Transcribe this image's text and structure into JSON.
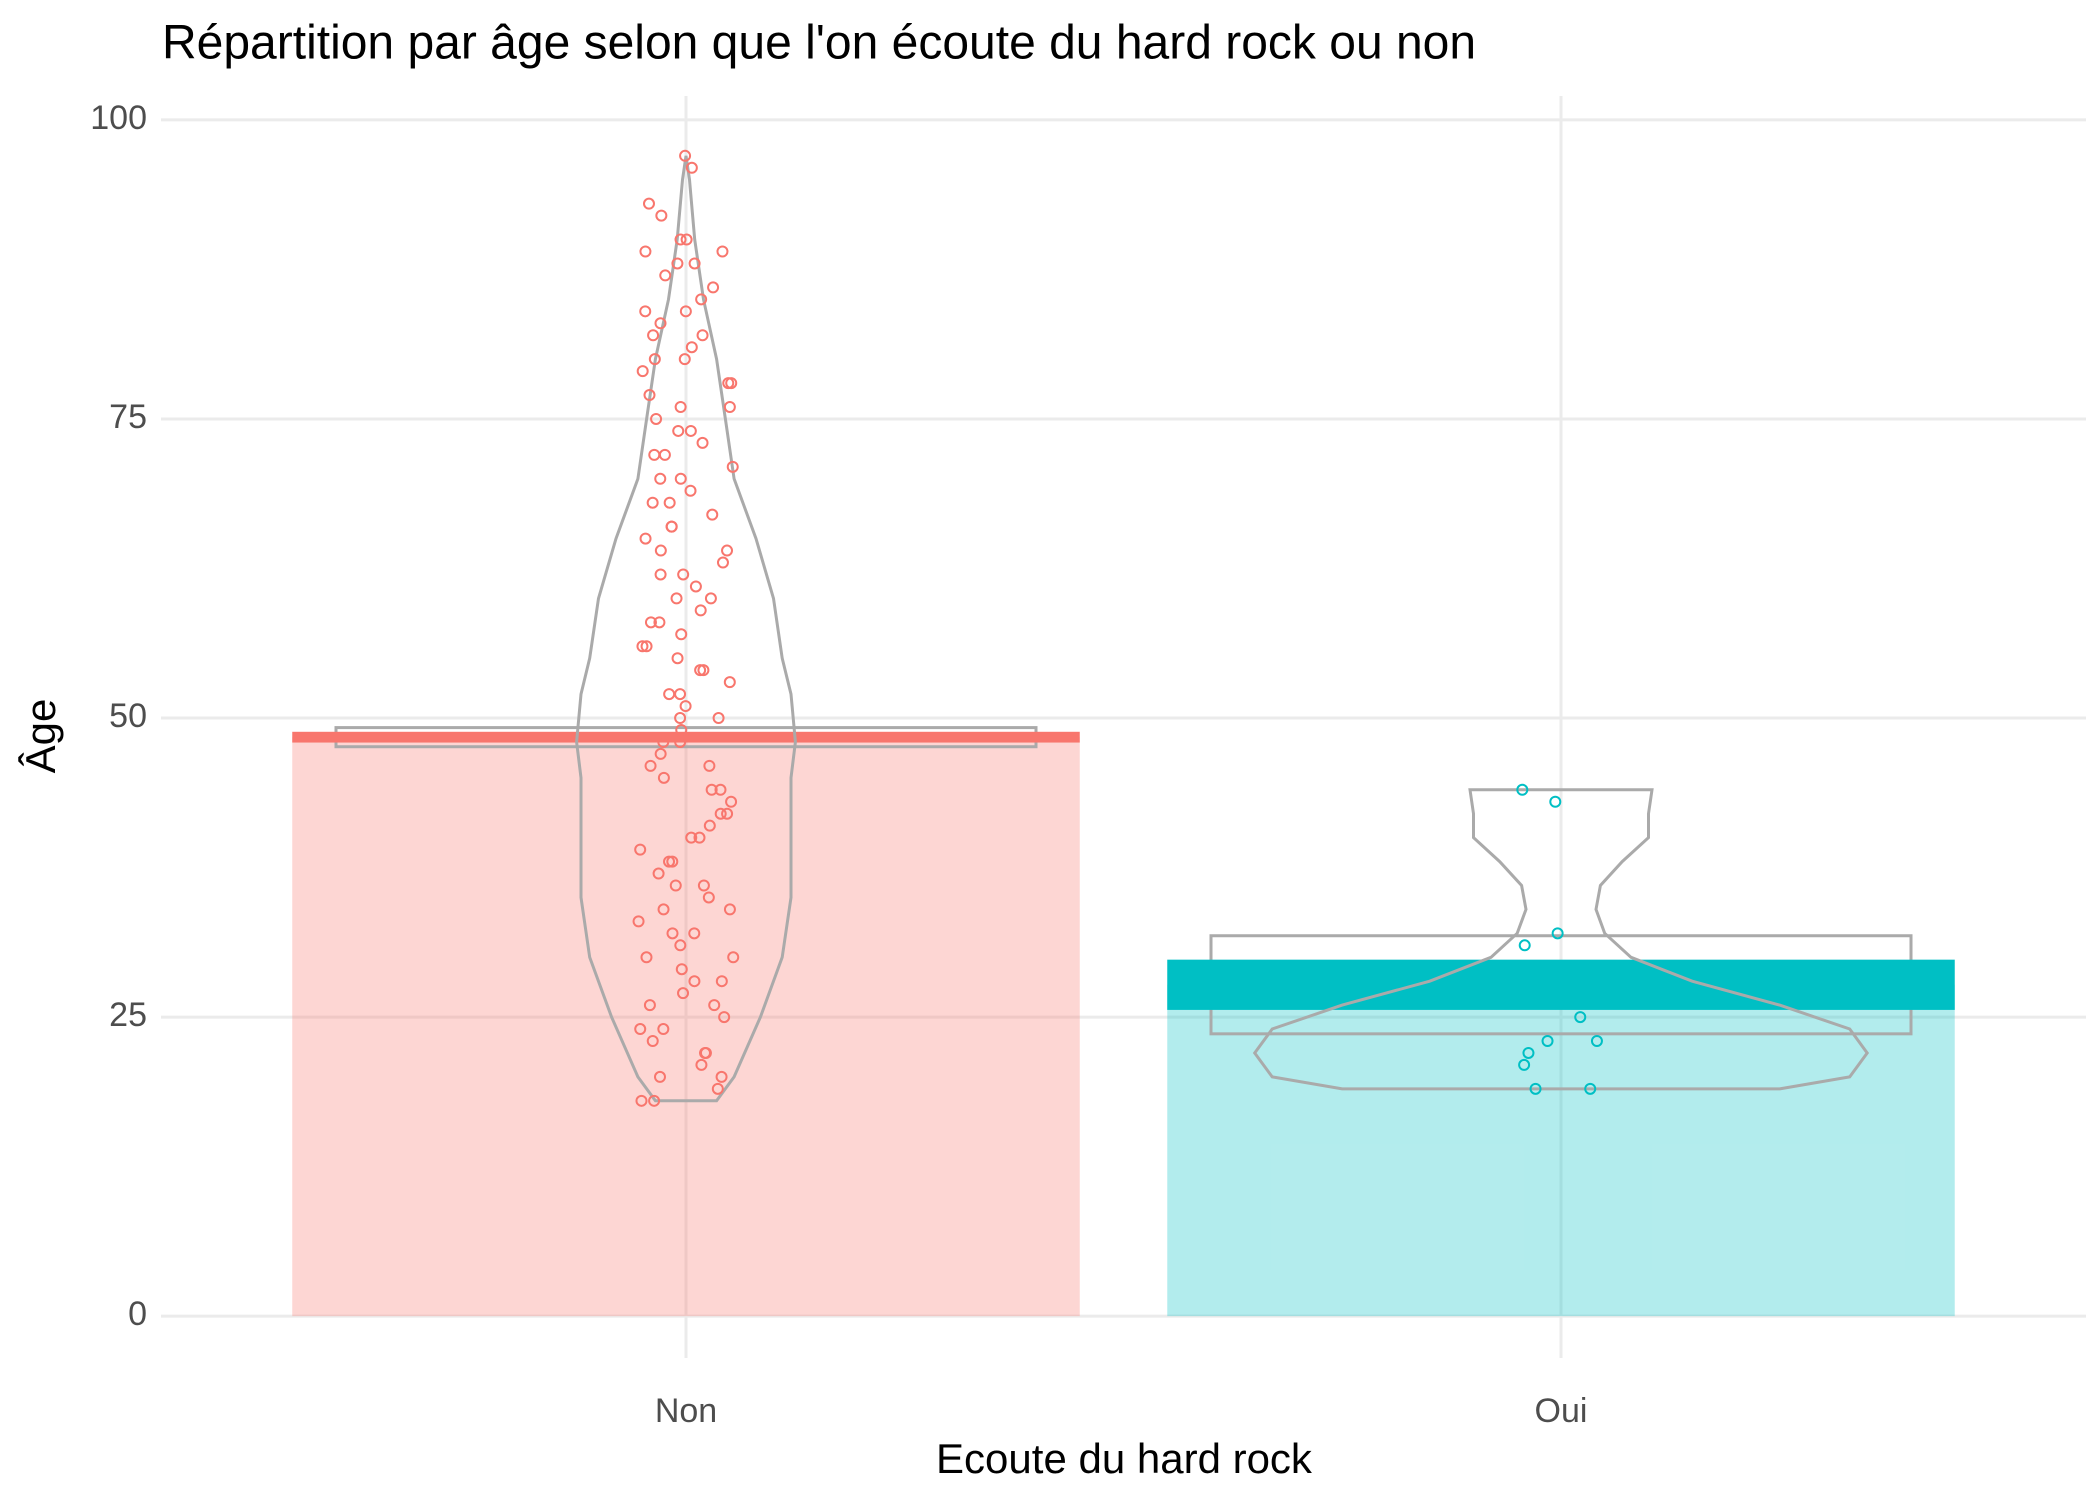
{
  "chart_data": {
    "type": "pirate",
    "title": "Répartition par âge selon que l'on écoute du hard rock ou non",
    "x_label": "Ecoute du hard rock",
    "y_label": "Âge",
    "categories": [
      "Non",
      "Oui"
    ],
    "colors": [
      "#F8766D",
      "#00BFC4"
    ],
    "means": [
      48.4,
      27.7
    ],
    "se": [
      0.45,
      2.1
    ],
    "ci_lower": [
      47.6,
      23.6
    ],
    "ci_upper": [
      49.2,
      31.8
    ],
    "points": [
      [
        97,
        96,
        93,
        92,
        90,
        90,
        89,
        89,
        88,
        88,
        87,
        86,
        85,
        84,
        84,
        83,
        82,
        82,
        81,
        80,
        80,
        79,
        78,
        78,
        77,
        76,
        76,
        75,
        74,
        74,
        73,
        72,
        72,
        71,
        70,
        70,
        69,
        68,
        68,
        67,
        66,
        66,
        65,
        64,
        64,
        63,
        62,
        62,
        61,
        60,
        60,
        59,
        58,
        58,
        57,
        56,
        56,
        55,
        54,
        54,
        53,
        52,
        52,
        51,
        50,
        50,
        49,
        48,
        48,
        47,
        46,
        46,
        45,
        44,
        44,
        43,
        42,
        42,
        41,
        40,
        40,
        39,
        38,
        38,
        37,
        36,
        36,
        35,
        34,
        34,
        33,
        32,
        32,
        31,
        30,
        30,
        29,
        28,
        28,
        27,
        26,
        26,
        25,
        24,
        24,
        23,
        22,
        22,
        21,
        20,
        20,
        19,
        18,
        18
      ],
      [
        44,
        43,
        32,
        31,
        25,
        23,
        23,
        22,
        21,
        19,
        19
      ]
    ],
    "violins": [
      {
        "y": [
          18,
          20,
          25,
          30,
          35,
          40,
          45,
          48,
          52,
          55,
          60,
          65,
          70,
          75,
          80,
          85,
          90,
          95,
          97
        ],
        "width": [
          0.035,
          0.055,
          0.085,
          0.11,
          0.12,
          0.12,
          0.12,
          0.125,
          0.12,
          0.11,
          0.1,
          0.08,
          0.055,
          0.045,
          0.035,
          0.02,
          0.01,
          0.004,
          0
        ]
      },
      {
        "y": [
          19,
          20,
          22,
          24,
          26,
          28,
          30,
          32,
          34,
          36,
          38,
          40,
          42,
          44
        ],
        "width": [
          0.25,
          0.33,
          0.35,
          0.33,
          0.25,
          0.15,
          0.08,
          0.05,
          0.04,
          0.045,
          0.07,
          0.1,
          0.1,
          0.104
        ]
      }
    ],
    "ylim": [
      -3.5,
      102
    ],
    "yticks": [
      0,
      25,
      50,
      75,
      100
    ],
    "grid": true
  }
}
